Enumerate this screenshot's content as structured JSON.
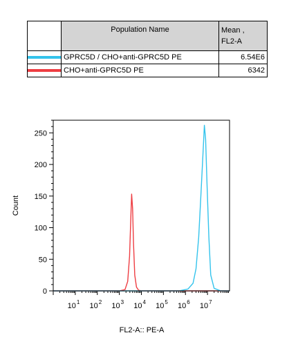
{
  "legend": {
    "header_name": "Population Name",
    "header_mean_line1": "Mean ,",
    "header_mean_line2": "FL2-A",
    "rows": [
      {
        "label": "GPRC5D / CHO+anti-GPRC5D PE",
        "value": "6.54E6",
        "color": "#33c3ec"
      },
      {
        "label": "CHO+anti-GPRC5D PE",
        "value": "6342",
        "color": "#ee3d42"
      }
    ]
  },
  "chart_data": {
    "type": "line",
    "title": "",
    "xlabel": "FL2-A:: PE-A",
    "ylabel": "Count",
    "x_scale": "log",
    "xlim": [
      1,
      100000000.0
    ],
    "ylim": [
      0,
      270
    ],
    "x_ticks": [
      {
        "base": "10",
        "exp": "1",
        "value": 10
      },
      {
        "base": "10",
        "exp": "2",
        "value": 100
      },
      {
        "base": "10",
        "exp": "3",
        "value": 1000
      },
      {
        "base": "10",
        "exp": "4",
        "value": 10000
      },
      {
        "base": "10",
        "exp": "5",
        "value": 100000
      },
      {
        "base": "10",
        "exp": "6",
        "value": 1000000
      },
      {
        "base": "10",
        "exp": "7",
        "value": 10000000
      }
    ],
    "y_ticks": [
      0,
      50,
      100,
      150,
      200,
      250
    ],
    "series": [
      {
        "name": "CHO+anti-GPRC5D PE",
        "color": "#ee3d42",
        "x": [
          1,
          1000,
          1800,
          2400,
          2900,
          3300,
          3600,
          4000,
          4400,
          5000,
          6000,
          7500,
          10000,
          100000000
        ],
        "y": [
          0,
          0,
          2,
          15,
          55,
          115,
          153,
          130,
          75,
          25,
          6,
          1,
          0,
          0
        ]
      },
      {
        "name": "GPRC5D / CHO+anti-GPRC5D PE",
        "color": "#33c3ec",
        "x": [
          1,
          100000,
          500000,
          1300000,
          2200000,
          3000000,
          4000000,
          5000000,
          6200000,
          7200000,
          8200000,
          9500000,
          11500000,
          14000000,
          20000000,
          40000000,
          100000000
        ],
        "y": [
          0,
          0,
          0,
          3,
          12,
          35,
          85,
          150,
          215,
          262,
          240,
          170,
          85,
          25,
          4,
          0,
          0
        ]
      }
    ]
  }
}
